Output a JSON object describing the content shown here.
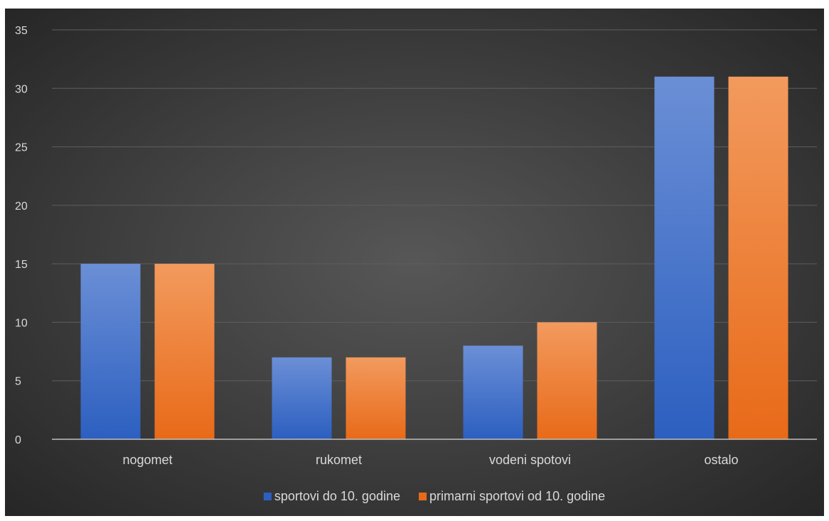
{
  "chart_data": {
    "type": "bar",
    "title": "",
    "xlabel": "",
    "ylabel": "",
    "categories": [
      "nogomet",
      "rukomet",
      "vodeni spotovi",
      "ostalo"
    ],
    "series": [
      {
        "name": "sportovi do 10. godine",
        "values": [
          15,
          7,
          8,
          31
        ],
        "color_top": "#6b8fd6",
        "color_bottom": "#2c5fc0"
      },
      {
        "name": "primarni sportovi od 10. godine",
        "values": [
          15,
          7,
          10,
          31
        ],
        "color_top": "#f29a5e",
        "color_bottom": "#e86a18"
      }
    ],
    "ylim": [
      0,
      35
    ],
    "yticks": [
      0,
      5,
      10,
      15,
      20,
      25,
      30,
      35
    ],
    "grid": true,
    "legend_position": "bottom"
  }
}
